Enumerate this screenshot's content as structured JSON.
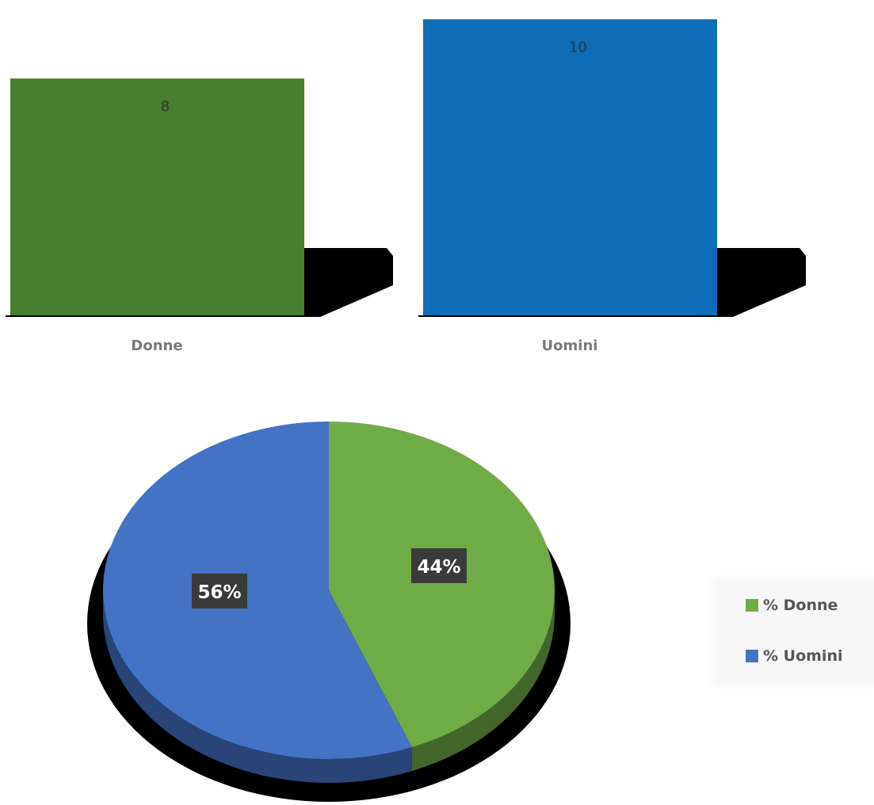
{
  "chart_data": [
    {
      "type": "bar",
      "categories": [
        "Donne",
        "Uomini"
      ],
      "values": [
        8,
        10
      ],
      "colors": [
        "#487f2e",
        "#0f6cb6"
      ],
      "ylim": [
        0,
        10.25
      ],
      "style": "3d"
    },
    {
      "type": "pie",
      "labels": [
        "% Donne",
        "% Uomini"
      ],
      "values": [
        44,
        56
      ],
      "data_labels": [
        "44%",
        "56%"
      ],
      "colors": [
        "#6fac46",
        "#4472c4"
      ],
      "legend": "right",
      "style": "3d"
    }
  ]
}
